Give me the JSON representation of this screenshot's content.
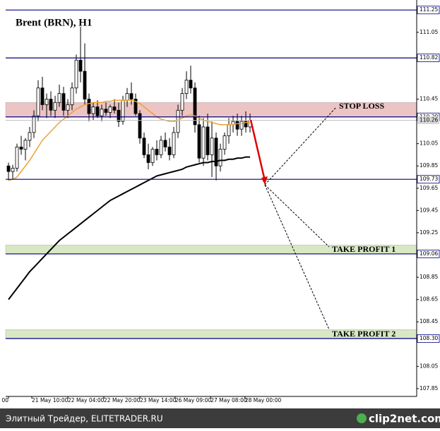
{
  "chart_data": {
    "type": "candlestick",
    "title": "Brent (BRN), H1",
    "candles": [
      [
        109.85,
        109.88,
        109.72,
        109.8
      ],
      [
        109.8,
        109.86,
        109.73,
        109.83
      ],
      [
        109.83,
        110.05,
        109.8,
        110.02
      ],
      [
        110.02,
        110.12,
        109.95,
        110.0
      ],
      [
        110.0,
        110.1,
        109.9,
        110.08
      ],
      [
        110.08,
        110.2,
        110.02,
        110.15
      ],
      [
        110.15,
        110.35,
        110.1,
        110.3
      ],
      [
        110.3,
        110.62,
        110.25,
        110.55
      ],
      [
        110.55,
        110.65,
        110.35,
        110.4
      ],
      [
        110.4,
        110.5,
        110.28,
        110.45
      ],
      [
        110.45,
        110.52,
        110.3,
        110.35
      ],
      [
        110.35,
        110.48,
        110.28,
        110.42
      ],
      [
        110.42,
        110.58,
        110.38,
        110.5
      ],
      [
        110.5,
        110.56,
        110.3,
        110.35
      ],
      [
        110.35,
        110.45,
        110.28,
        110.4
      ],
      [
        110.4,
        110.6,
        110.35,
        110.55
      ],
      [
        110.55,
        110.85,
        110.5,
        110.8
      ],
      [
        110.8,
        111.1,
        110.6,
        110.7
      ],
      [
        110.7,
        110.95,
        110.4,
        110.45
      ],
      [
        110.45,
        110.5,
        110.25,
        110.32
      ],
      [
        110.32,
        110.42,
        110.26,
        110.38
      ],
      [
        110.38,
        110.44,
        110.28,
        110.3
      ],
      [
        110.3,
        110.4,
        110.25,
        110.36
      ],
      [
        110.36,
        110.42,
        110.3,
        110.33
      ],
      [
        110.33,
        110.4,
        110.28,
        110.38
      ],
      [
        110.38,
        110.45,
        110.32,
        110.35
      ],
      [
        110.35,
        110.42,
        110.2,
        110.25
      ],
      [
        110.25,
        110.48,
        110.22,
        110.44
      ],
      [
        110.44,
        110.55,
        110.38,
        110.5
      ],
      [
        110.5,
        110.6,
        110.4,
        110.45
      ],
      [
        110.45,
        110.5,
        110.3,
        110.32
      ],
      [
        110.32,
        110.35,
        110.05,
        110.1
      ],
      [
        110.1,
        110.15,
        109.92,
        109.95
      ],
      [
        109.95,
        110.05,
        109.82,
        109.88
      ],
      [
        109.88,
        110.02,
        109.85,
        110.0
      ],
      [
        110.0,
        110.08,
        109.9,
        109.95
      ],
      [
        109.95,
        110.12,
        109.92,
        110.08
      ],
      [
        110.08,
        110.15,
        109.98,
        110.02
      ],
      [
        110.02,
        110.1,
        109.9,
        109.95
      ],
      [
        109.95,
        110.2,
        109.92,
        110.15
      ],
      [
        110.15,
        110.4,
        110.1,
        110.35
      ],
      [
        110.35,
        110.55,
        110.3,
        110.5
      ],
      [
        110.5,
        110.7,
        110.45,
        110.62
      ],
      [
        110.62,
        110.75,
        110.5,
        110.55
      ],
      [
        110.55,
        110.6,
        110.15,
        110.22
      ],
      [
        110.22,
        110.3,
        109.88,
        109.92
      ],
      [
        109.92,
        110.28,
        109.85,
        110.2
      ],
      [
        110.2,
        110.32,
        109.9,
        109.95
      ],
      [
        109.95,
        110.25,
        109.75,
        110.1
      ],
      [
        110.1,
        110.15,
        109.72,
        109.85
      ],
      [
        109.85,
        110.05,
        109.8,
        110.0
      ],
      [
        110.0,
        110.15,
        109.95,
        110.12
      ],
      [
        110.12,
        110.28,
        110.05,
        110.22
      ],
      [
        110.22,
        110.3,
        110.15,
        110.25
      ],
      [
        110.25,
        110.32,
        110.12,
        110.18
      ],
      [
        110.18,
        110.3,
        110.12,
        110.25
      ],
      [
        110.25,
        110.34,
        110.15,
        110.2
      ],
      [
        110.2,
        110.32,
        110.15,
        110.26
      ]
    ],
    "lines": [
      {
        "color": "#f0a030",
        "values": [
          109.72,
          109.73,
          109.75,
          109.8,
          109.85,
          109.9,
          109.96,
          110.02,
          110.08,
          110.12,
          110.16,
          110.2,
          110.24,
          110.27,
          110.3,
          110.33,
          110.36,
          110.38,
          110.4,
          110.41,
          110.42,
          110.42,
          110.42,
          110.43,
          110.43,
          110.44,
          110.44,
          110.44,
          110.44,
          110.44,
          110.43,
          110.41,
          110.38,
          110.35,
          110.32,
          110.29,
          110.27,
          110.26,
          110.25,
          110.25,
          110.26,
          110.28,
          110.3,
          110.31,
          110.3,
          110.28,
          110.26,
          110.25,
          110.24,
          110.23,
          110.22,
          110.22,
          110.22,
          110.22,
          110.23,
          110.23,
          110.24,
          110.24
        ]
      },
      {
        "color": "#000000",
        "values": [
          108.65,
          108.7,
          108.75,
          108.8,
          108.85,
          108.9,
          108.94,
          108.98,
          109.02,
          109.06,
          109.1,
          109.14,
          109.18,
          109.21,
          109.24,
          109.27,
          109.3,
          109.33,
          109.36,
          109.39,
          109.42,
          109.45,
          109.48,
          109.51,
          109.54,
          109.56,
          109.58,
          109.6,
          109.62,
          109.64,
          109.66,
          109.68,
          109.7,
          109.72,
          109.74,
          109.76,
          109.77,
          109.78,
          109.79,
          109.8,
          109.81,
          109.82,
          109.84,
          109.85,
          109.86,
          109.87,
          109.88,
          109.88,
          109.89,
          109.89,
          109.9,
          109.9,
          109.91,
          109.91,
          109.92,
          109.92,
          109.93,
          109.93
        ]
      }
    ],
    "xlim": [
      -0.67,
      96.33
    ],
    "xticks": [
      {
        "value": 0,
        "label": "00"
      },
      {
        "value": 5.5,
        "label": "21 May 10:00"
      },
      {
        "value": 14,
        "label": "22 May 04:00"
      },
      {
        "value": 22.5,
        "label": "22 May 20:00"
      },
      {
        "value": 31,
        "label": "23 May 14:00"
      },
      {
        "value": 39.3,
        "label": "26 May 09:00"
      },
      {
        "value": 47.7,
        "label": "27 May 08:00"
      },
      {
        "value": 55.8,
        "label": "28 May 00:00"
      }
    ],
    "ylim": [
      107.78,
      111.34
    ],
    "yticks": [
      107.85,
      108.05,
      108.45,
      108.65,
      108.85,
      109.25,
      109.45,
      109.65,
      109.85,
      110.05,
      110.45,
      111.05
    ],
    "levels": {
      "values": [
        111.25,
        110.82,
        110.29,
        109.73,
        109.06,
        108.3
      ],
      "value_labels": [
        "111.25",
        "110.82",
        "110.29",
        "109.73",
        "109.06",
        "108.30"
      ],
      "color": "#000080"
    },
    "last_price": 110.26,
    "zones": [
      {
        "label": "STOP LOSS",
        "from": 110.29,
        "to": 110.42,
        "color": "#ecc4c4"
      },
      {
        "label": "TAKE PROFIT 1",
        "from": 109.06,
        "to": 109.14,
        "color": "#d8e8c4"
      },
      {
        "label": "TAKE PROFIT 2",
        "from": 108.3,
        "to": 108.38,
        "color": "#d8e8c4"
      }
    ]
  },
  "footer": {
    "left": "Элитный Трейдер, ELITETRADER.RU",
    "right": "clip2net.com"
  }
}
